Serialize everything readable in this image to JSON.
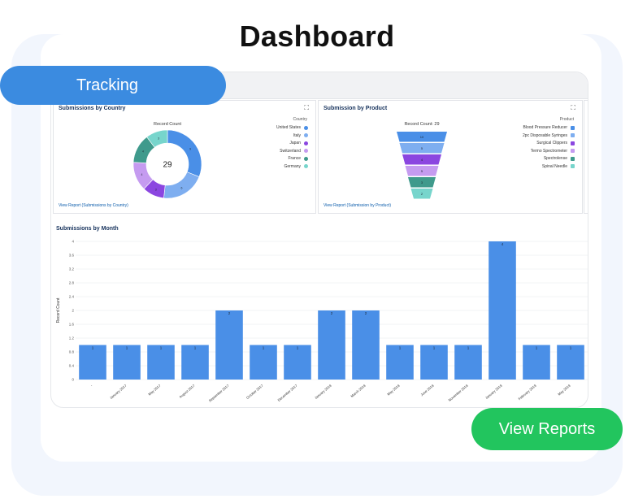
{
  "page": {
    "title": "Dashboard"
  },
  "tracking_tab": {
    "label": "Tracking"
  },
  "view_reports_button": {
    "label": "View Reports"
  },
  "country_panel": {
    "title": "Submissions by Country",
    "chart_label": "Record Count",
    "total": "29",
    "legend_title": "Country",
    "legend": [
      {
        "name": "United States",
        "color": "#4a8fe7"
      },
      {
        "name": "Italy",
        "color": "#7eaef0"
      },
      {
        "name": "Japan",
        "color": "#8b46e0"
      },
      {
        "name": "Switzerland",
        "color": "#c59bf0"
      },
      {
        "name": "France",
        "color": "#3f9a8c"
      },
      {
        "name": "Germany",
        "color": "#77d5cc"
      }
    ],
    "link": "View Report (Submissions by Country)"
  },
  "product_panel": {
    "title": "Submission by Product",
    "chart_label": "Record Count: 29",
    "legend_title": "Product",
    "legend": [
      {
        "name": "Blood Pressure Reducer",
        "color": "#4a8fe7"
      },
      {
        "name": "2pc Disposable Syringes",
        "color": "#7eaef0"
      },
      {
        "name": "Surgical Clippers",
        "color": "#8b46e0"
      },
      {
        "name": "Termo Spectrometer",
        "color": "#c59bf0"
      },
      {
        "name": "Spectrolense",
        "color": "#3f9a8c"
      },
      {
        "name": "Spinal Needle",
        "color": "#77d5cc"
      }
    ],
    "link": "View Report (Submission by Product)"
  },
  "chart_data": [
    {
      "type": "pie",
      "title": "Record Count",
      "categories": [
        "United States",
        "Italy",
        "Japan",
        "Switzerland",
        "France",
        "Germany"
      ],
      "values": [
        9,
        6,
        3,
        4,
        4,
        3
      ],
      "total": 29
    },
    {
      "type": "bar",
      "title": "Record Count: 29",
      "categories": [
        "Blood Pressure Reducer",
        "2pc Disposable Syringes",
        "Surgical Clippers",
        "Termo Spectrometer",
        "Spectrolense",
        "Spinal Needle"
      ],
      "values": [
        10,
        5,
        4,
        5,
        3,
        2
      ]
    },
    {
      "type": "bar",
      "title": "Submissions by Month",
      "ylabel": "Record Count",
      "xlabel": "",
      "ylim": [
        0,
        4
      ],
      "yticks": [
        "0",
        "0.4",
        "0.8",
        "1.2",
        "1.6",
        "2",
        "2.4",
        "2.8",
        "3.2",
        "3.6",
        "4"
      ],
      "categories": [
        "-",
        "January 2017",
        "May 2017",
        "August 2017",
        "September 2017",
        "October 2017",
        "December 2017",
        "January 2018",
        "March 2018",
        "May 2018",
        "June 2018",
        "November 2018",
        "January 2019",
        "February 2019",
        "May 2019"
      ],
      "values": [
        1,
        1,
        1,
        1,
        2,
        1,
        1,
        2,
        2,
        1,
        1,
        1,
        4,
        1,
        1
      ],
      "color": "#4a8fe7",
      "grid": true
    }
  ]
}
